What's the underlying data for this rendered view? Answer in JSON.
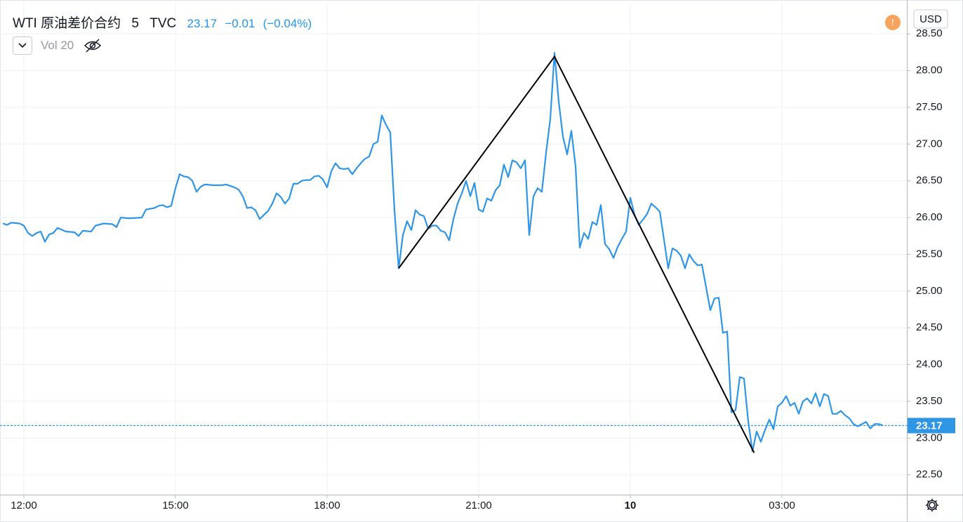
{
  "chart_data": {
    "type": "line",
    "title": "WTI 原油差价合约",
    "interval": "5",
    "source": "TVC",
    "change": "−0.01",
    "change_percent": "(−0.04%)",
    "indicator": "Vol 20",
    "currency": "USD",
    "grid": true,
    "xlim": [
      -28.3,
      1048.3
    ],
    "xticks": [
      {
        "value": 0,
        "label": "12:00"
      },
      {
        "value": 180,
        "label": "15:00"
      },
      {
        "value": 360,
        "label": "18:00"
      },
      {
        "value": 540,
        "label": "21:00"
      },
      {
        "value": 720,
        "label": "10"
      },
      {
        "value": 900,
        "label": "03:00"
      }
    ],
    "ylim": [
      22.23,
      28.96
    ],
    "yticks": [
      {
        "value": 22.5,
        "label": "22.50"
      },
      {
        "value": 23,
        "label": "23.00"
      },
      {
        "value": 23.5,
        "label": "23.50"
      },
      {
        "value": 24,
        "label": "24.00"
      },
      {
        "value": 24.5,
        "label": "24.50"
      },
      {
        "value": 25,
        "label": "25.00"
      },
      {
        "value": 25.5,
        "label": "25.50"
      },
      {
        "value": 26,
        "label": "26.00"
      },
      {
        "value": 26.5,
        "label": "26.50"
      },
      {
        "value": 27,
        "label": "27.00"
      },
      {
        "value": 27.5,
        "label": "27.50"
      },
      {
        "value": 28,
        "label": "28.00"
      },
      {
        "value": 28.5,
        "label": "28.50"
      }
    ],
    "x": [
      -25,
      -20,
      -15,
      -5,
      0,
      5,
      10,
      15,
      20,
      25,
      30,
      35,
      40,
      50,
      60,
      65,
      70,
      80,
      85,
      95,
      105,
      110,
      115,
      125,
      140,
      145,
      155,
      160,
      165,
      170,
      175,
      180,
      185,
      190,
      195,
      200,
      205,
      210,
      215,
      225,
      235,
      240,
      250,
      255,
      260,
      265,
      270,
      275,
      280,
      290,
      295,
      300,
      305,
      310,
      315,
      320,
      325,
      330,
      335,
      340,
      345,
      350,
      355,
      360,
      365,
      370,
      375,
      380,
      385,
      390,
      395,
      400,
      405,
      410,
      415,
      420,
      425,
      430,
      435,
      440,
      445,
      450,
      455,
      460,
      465,
      470,
      475,
      480,
      485,
      490,
      495,
      500,
      505,
      510,
      515,
      520,
      525,
      530,
      535,
      540,
      545,
      550,
      555,
      560,
      565,
      570,
      575,
      580,
      585,
      590,
      595,
      600,
      605,
      610,
      615,
      620,
      625,
      630,
      635,
      640,
      645,
      650,
      655,
      660,
      665,
      670,
      675,
      680,
      685,
      690,
      695,
      700,
      705,
      710,
      715,
      720,
      725,
      730,
      735,
      740,
      745,
      750,
      755,
      760,
      765,
      770,
      775,
      780,
      785,
      790,
      795,
      800,
      805,
      810,
      815,
      820,
      825,
      830,
      835,
      840,
      845,
      850,
      855,
      860,
      865,
      870,
      875,
      880,
      885,
      890,
      895,
      900,
      905,
      910,
      915,
      920,
      925,
      930,
      935,
      940,
      945,
      950,
      955,
      960,
      965,
      970,
      975,
      980,
      985,
      990,
      995,
      1000,
      1005,
      1010,
      1015,
      1020
    ],
    "series": [
      {
        "color": "#2f96e6",
        "values": [
          25.92,
          25.9,
          25.93,
          25.92,
          25.89,
          25.79,
          25.75,
          25.79,
          25.81,
          25.67,
          25.77,
          25.79,
          25.86,
          25.81,
          25.8,
          25.75,
          25.82,
          25.81,
          25.89,
          25.92,
          25.91,
          25.87,
          26.0,
          25.99,
          26.0,
          26.11,
          26.13,
          26.16,
          26.17,
          26.14,
          26.16,
          26.4,
          26.59,
          26.56,
          26.55,
          26.5,
          26.35,
          26.42,
          26.45,
          26.44,
          26.44,
          26.45,
          26.41,
          26.38,
          26.29,
          26.13,
          26.14,
          26.1,
          25.98,
          26.09,
          26.19,
          26.33,
          26.28,
          26.19,
          26.26,
          26.46,
          26.46,
          26.5,
          26.51,
          26.51,
          26.56,
          26.57,
          26.52,
          26.41,
          26.63,
          26.74,
          26.67,
          26.66,
          26.67,
          26.59,
          26.67,
          26.74,
          26.8,
          26.83,
          27.0,
          27.03,
          27.39,
          27.26,
          27.16,
          26.1,
          25.31,
          25.76,
          25.95,
          25.83,
          26.1,
          26.04,
          26.02,
          25.85,
          25.89,
          25.89,
          25.82,
          25.8,
          25.69,
          25.98,
          26.19,
          26.33,
          26.5,
          26.29,
          26.47,
          26.11,
          26.08,
          26.26,
          26.23,
          26.37,
          26.44,
          26.72,
          26.55,
          26.78,
          26.75,
          26.67,
          26.78,
          25.76,
          26.29,
          26.4,
          26.35,
          26.88,
          27.34,
          28.24,
          27.58,
          27.1,
          26.86,
          27.18,
          26.7,
          25.59,
          25.79,
          25.71,
          25.94,
          25.9,
          26.17,
          25.64,
          25.57,
          25.45,
          25.6,
          25.71,
          25.81,
          26.27,
          26.04,
          25.9,
          25.97,
          26.05,
          26.19,
          26.14,
          26.08,
          25.7,
          25.31,
          25.58,
          25.55,
          25.48,
          25.31,
          25.5,
          25.41,
          25.35,
          25.36,
          25.05,
          24.74,
          24.9,
          24.91,
          24.43,
          24.45,
          23.35,
          23.38,
          23.83,
          23.81,
          23.23,
          22.82,
          23.09,
          22.95,
          23.11,
          23.25,
          23.12,
          23.43,
          23.48,
          23.57,
          23.44,
          23.48,
          23.33,
          23.5,
          23.54,
          23.47,
          23.61,
          23.43,
          23.6,
          23.57,
          23.33,
          23.33,
          23.37,
          23.31,
          23.27,
          23.19,
          23.16,
          23.19,
          23.22,
          23.13,
          23.19,
          23.19,
          23.17
        ]
      }
    ],
    "drawings": [
      {
        "color": "#000000",
        "x": [
          445,
          630,
          867
        ],
        "values": [
          25.31,
          28.19,
          22.8
        ]
      }
    ]
  }
}
